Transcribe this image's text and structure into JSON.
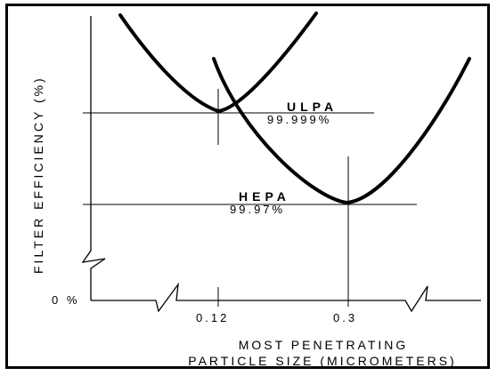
{
  "chart_data": {
    "type": "line",
    "ylabel": "FILTER EFFICIENCY (%)",
    "xlabel_line1": "MOST PENETRATING",
    "xlabel_line2": "PARTICLE SIZE (MICROMETERS)",
    "y_tick_zero": "0 %",
    "x_ticks": [
      {
        "value": 0.12,
        "label": "0.12"
      },
      {
        "value": 0.3,
        "label": "0.3"
      }
    ],
    "series": [
      {
        "name": "ULPA",
        "efficiency_label": "99.999%",
        "efficiency_value": 99.999,
        "most_penetrating_size": 0.12
      },
      {
        "name": "HEPA",
        "efficiency_label": "99.97%",
        "efficiency_value": 99.97,
        "most_penetrating_size": 0.3
      }
    ],
    "axis_breaks": [
      "y-axis",
      "x-axis-left",
      "x-axis-right"
    ],
    "grid": false,
    "colors": {
      "line": "#000000",
      "background": "#ffffff"
    }
  }
}
